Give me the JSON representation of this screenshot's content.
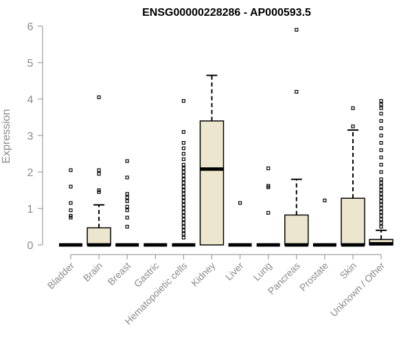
{
  "chart_data": {
    "type": "box",
    "title": "ENSG00000228286 - AP000593.5",
    "ylabel": "Expression",
    "xlabel": "",
    "ylim": [
      0,
      6
    ],
    "yticks": [
      0,
      1,
      2,
      3,
      4,
      5,
      6
    ],
    "grid": false,
    "box_fill": "#ede6ce",
    "categories": [
      "Bladder",
      "Brain",
      "Breast",
      "Gastric",
      "Hematopoietic cells",
      "Kidney",
      "Liver",
      "Lung",
      "Pancreas",
      "Prostate",
      "Skin",
      "Unknown / Other"
    ],
    "boxes": [
      {
        "q1": 0,
        "median": 0,
        "q3": 0,
        "whisker_low": 0,
        "whisker_high": 0,
        "outliers": [
          0.75,
          0.8,
          0.95,
          1.15,
          1.6,
          2.05
        ]
      },
      {
        "q1": 0,
        "median": 0,
        "q3": 0.47,
        "whisker_low": 0,
        "whisker_high": 1.1,
        "outliers": [
          1.45,
          1.5,
          1.95,
          2.05,
          4.05
        ]
      },
      {
        "q1": 0,
        "median": 0,
        "q3": 0,
        "whisker_low": 0,
        "whisker_high": 0,
        "outliers": [
          0.5,
          0.75,
          0.95,
          1.05,
          1.2,
          1.3,
          1.4,
          1.85,
          2.3
        ]
      },
      {
        "q1": 0,
        "median": 0,
        "q3": 0,
        "whisker_low": 0,
        "whisker_high": 0,
        "outliers": []
      },
      {
        "q1": 0,
        "median": 0,
        "q3": 0,
        "whisker_low": 0,
        "whisker_high": 0,
        "outliers": [
          0.2,
          0.3,
          0.4,
          0.5,
          0.6,
          0.7,
          0.8,
          0.9,
          1.0,
          1.1,
          1.2,
          1.3,
          1.4,
          1.5,
          1.6,
          1.7,
          1.8,
          1.9,
          2.0,
          2.1,
          2.2,
          2.35,
          2.5,
          2.65,
          2.8,
          3.1,
          3.95
        ]
      },
      {
        "q1": 0,
        "median": 2.08,
        "q3": 3.4,
        "whisker_low": 0,
        "whisker_high": 4.65,
        "outliers": []
      },
      {
        "q1": 0,
        "median": 0,
        "q3": 0,
        "whisker_low": 0,
        "whisker_high": 0,
        "outliers": [
          1.15
        ]
      },
      {
        "q1": 0,
        "median": 0,
        "q3": 0,
        "whisker_low": 0,
        "whisker_high": 0,
        "outliers": [
          0.88,
          1.58,
          1.62,
          2.1
        ]
      },
      {
        "q1": 0,
        "median": 0,
        "q3": 0.82,
        "whisker_low": 0,
        "whisker_high": 1.8,
        "outliers": [
          4.2,
          5.9
        ]
      },
      {
        "q1": 0,
        "median": 0,
        "q3": 0,
        "whisker_low": 0,
        "whisker_high": 0,
        "outliers": [
          1.22
        ]
      },
      {
        "q1": 0,
        "median": 0,
        "q3": 1.28,
        "whisker_low": 0,
        "whisker_high": 3.15,
        "outliers": [
          3.25,
          3.75
        ]
      },
      {
        "q1": 0,
        "median": 0.03,
        "q3": 0.15,
        "whisker_low": 0,
        "whisker_high": 0.4,
        "outliers": [
          0.5,
          0.6,
          0.7,
          0.8,
          0.9,
          1.0,
          1.1,
          1.2,
          1.3,
          1.4,
          1.5,
          1.6,
          1.7,
          1.8,
          2.0,
          2.2,
          2.4,
          2.6,
          2.8,
          3.0,
          3.2,
          3.4,
          3.6,
          3.75,
          3.85,
          3.95
        ]
      }
    ]
  }
}
